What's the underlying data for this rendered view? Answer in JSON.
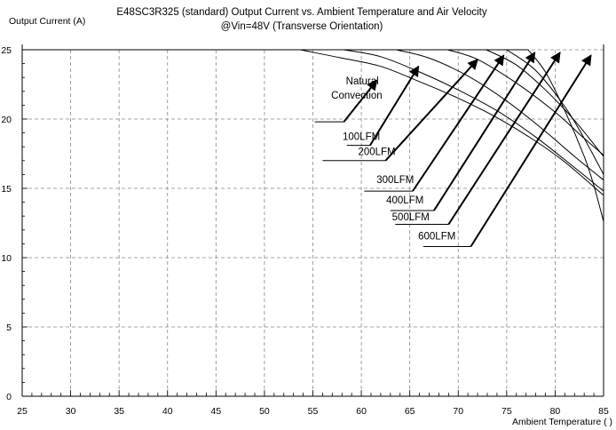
{
  "chart_data": {
    "type": "line",
    "title": "E48SC3R325 (standard)  Output Current vs. Ambient Temperature and Air Velocity",
    "subtitle": "@Vin=48V (Transverse Orientation)",
    "ylabel": "Output Current (A)",
    "xlabel": "Ambient Temperature (  )",
    "xlim": [
      25,
      85
    ],
    "ylim": [
      0,
      25
    ],
    "xticks": [
      25,
      30,
      35,
      40,
      45,
      50,
      55,
      60,
      65,
      70,
      75,
      80,
      85
    ],
    "yticks": [
      0,
      5,
      10,
      15,
      20,
      25
    ],
    "grid": true,
    "series": [
      {
        "name": "Natural Convection",
        "x": [
          25,
          53.7,
          58,
          62,
          66,
          70,
          74,
          78,
          81,
          85
        ],
        "y": [
          25,
          25,
          24.4,
          23.8,
          22.7,
          21.5,
          20.1,
          18.4,
          16.9,
          14.5
        ]
      },
      {
        "name": "100LFM",
        "x": [
          25,
          58.2,
          62,
          66,
          70,
          74,
          78,
          82,
          85
        ],
        "y": [
          25,
          25,
          24.5,
          23.4,
          22.1,
          20.6,
          18.7,
          16.5,
          14.8
        ]
      },
      {
        "name": "200LFM",
        "x": [
          25,
          63.6,
          67,
          71,
          75,
          79,
          82,
          85
        ],
        "y": [
          25,
          25,
          24.4,
          23.1,
          21.3,
          19.1,
          17.3,
          15.6
        ]
      },
      {
        "name": "300LFM",
        "x": [
          25,
          68.9,
          72,
          76,
          80,
          83,
          85
        ],
        "y": [
          25,
          25,
          24.3,
          22.6,
          20.5,
          18.6,
          17.4
        ]
      },
      {
        "name": "400LFM",
        "x": [
          25,
          72.9,
          76,
          79,
          82,
          85
        ],
        "y": [
          25,
          25,
          23.9,
          22.1,
          19.9,
          17.3
        ]
      },
      {
        "name": "500LFM",
        "x": [
          25,
          75.0,
          78,
          81,
          83,
          85
        ],
        "y": [
          25,
          25,
          23.5,
          20.9,
          18.6,
          16.0
        ]
      },
      {
        "name": "600LFM",
        "x": [
          25,
          77.2,
          79,
          81,
          83,
          84,
          85
        ],
        "y": [
          25,
          25,
          23.4,
          20.6,
          17.3,
          15.2,
          12.6
        ]
      }
    ],
    "annotations": [
      {
        "label": "Natural",
        "label2": "Convection",
        "text_at": [
          61.8,
          21.6
        ],
        "line": [
          [
            55.2,
            19.8
          ],
          [
            58.2,
            19.8
          ]
        ],
        "arrow_to": [
          61.6,
          22.8
        ]
      },
      {
        "label": "100LFM",
        "text_at": [
          60.0,
          18.5
        ],
        "line": [
          [
            58.5,
            18.1
          ],
          [
            60.9,
            18.1
          ]
        ],
        "arrow_to": [
          65.9,
          23.8
        ]
      },
      {
        "label": "200LFM",
        "text_at": [
          61.6,
          17.4
        ],
        "line": [
          [
            56.0,
            17.0
          ],
          [
            62.5,
            17.0
          ]
        ],
        "arrow_to": [
          72.0,
          24.3
        ]
      },
      {
        "label": "300LFM",
        "text_at": [
          63.5,
          15.4
        ],
        "line": [
          [
            60.3,
            14.8
          ],
          [
            65.3,
            14.8
          ]
        ],
        "arrow_to": [
          74.7,
          24.6
        ]
      },
      {
        "label": "400LFM",
        "text_at": [
          64.5,
          13.9
        ],
        "line": [
          [
            63.0,
            13.4
          ],
          [
            67.5,
            13.4
          ]
        ],
        "arrow_to": [
          77.9,
          24.8
        ]
      },
      {
        "label": "500LFM",
        "text_at": [
          65.1,
          12.7
        ],
        "line": [
          [
            63.5,
            12.4
          ],
          [
            69.0,
            12.4
          ]
        ],
        "arrow_to": [
          80.5,
          24.8
        ]
      },
      {
        "label": "600LFM",
        "text_at": [
          67.8,
          11.3
        ],
        "line": [
          [
            66.4,
            10.8
          ],
          [
            71.3,
            10.8
          ]
        ],
        "arrow_to": [
          83.7,
          24.6
        ]
      }
    ]
  }
}
